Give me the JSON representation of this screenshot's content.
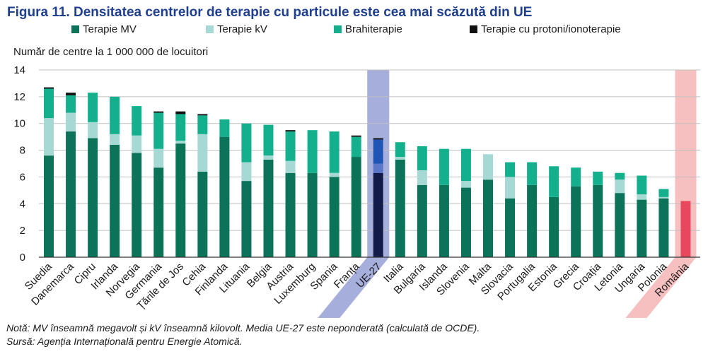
{
  "title": "Figura 11. Densitatea centrelor de terapie cu particule este cea mai scăzută din UE",
  "notes": {
    "line1": "Notă: MV înseamnă megavolt și kV înseamnă kilovolt. Media UE-27 este neponderată (calculată de OCDE).",
    "line2": "Sursă: Agenția Internațională pentru Energie Atomică."
  },
  "colors": {
    "mv": "#0b7358",
    "kv": "#a7d9d4",
    "brahi": "#14b08e",
    "proton": "#111111",
    "eu_mv": "#121a4a",
    "eu_kv": "#5b78c8",
    "eu_brahi": "#1f55b5",
    "eu_band": "#a6aedb",
    "ro_bar": "#e8485e",
    "ro_band": "#f7c0c0",
    "grid": "#bfbfbf",
    "axis": "#333333"
  },
  "chart_data": {
    "type": "bar",
    "stacked": true,
    "ylabel": "Număr de centre la 1 000 000 de locuitori",
    "ylim": [
      0,
      14
    ],
    "yticks": [
      0,
      2,
      4,
      6,
      8,
      10,
      12,
      14
    ],
    "grid": true,
    "legend_position": "top",
    "categories": [
      "Suedia",
      "Danemarca",
      "Cipru",
      "Irlanda",
      "Norvegia",
      "Germania",
      "Țările de Jos",
      "Cehia",
      "Finlanda",
      "Lituania",
      "Belgia",
      "Austria",
      "Luxemburg",
      "Spania",
      "Franța",
      "UE-27",
      "Italia",
      "Bulgaria",
      "Islanda",
      "Slovenia",
      "Malta",
      "Slovacia",
      "Portugalia",
      "Estonia",
      "Grecia",
      "Croația",
      "Letonia",
      "Ungaria",
      "Polonia",
      "România"
    ],
    "highlight": {
      "UE-27": "eu",
      "România": "ro"
    },
    "series": [
      {
        "name": "Terapie MV",
        "key": "mv",
        "values": [
          7.6,
          9.4,
          8.9,
          8.4,
          7.8,
          6.7,
          8.5,
          6.4,
          9.0,
          5.7,
          7.3,
          6.3,
          6.3,
          6.0,
          7.5,
          6.3,
          7.3,
          5.4,
          5.4,
          5.2,
          5.8,
          4.4,
          5.4,
          4.5,
          5.3,
          5.4,
          4.8,
          4.3,
          4.4,
          3.7
        ]
      },
      {
        "name": "Terapie kV",
        "key": "kv",
        "values": [
          2.8,
          1.4,
          1.2,
          0.8,
          1.3,
          1.4,
          0.2,
          2.8,
          0.0,
          1.4,
          0.3,
          0.9,
          0.0,
          0.3,
          0.0,
          0.7,
          0.2,
          1.1,
          0.0,
          0.5,
          1.9,
          1.6,
          0.0,
          0.0,
          0.0,
          0.0,
          1.0,
          0.4,
          0.1,
          0.0
        ]
      },
      {
        "name": "Brahiterapie",
        "key": "brahi",
        "values": [
          2.2,
          1.3,
          2.2,
          2.8,
          2.2,
          2.7,
          2.0,
          1.4,
          1.3,
          2.9,
          2.3,
          2.2,
          3.2,
          3.1,
          1.5,
          1.8,
          1.1,
          1.8,
          2.7,
          2.4,
          0.0,
          1.1,
          1.7,
          2.3,
          1.4,
          1.0,
          0.5,
          1.4,
          0.6,
          0.5
        ]
      },
      {
        "name": "Terapie cu protoni/ionoterapie",
        "key": "proton",
        "values": [
          0.1,
          0.2,
          0.0,
          0.0,
          0.0,
          0.1,
          0.2,
          0.1,
          0.0,
          0.0,
          0.0,
          0.1,
          0.0,
          0.0,
          0.1,
          0.1,
          0.0,
          0.0,
          0.0,
          0.0,
          0.0,
          0.0,
          0.0,
          0.0,
          0.0,
          0.0,
          0.0,
          0.0,
          0.0,
          0.0
        ]
      }
    ]
  }
}
